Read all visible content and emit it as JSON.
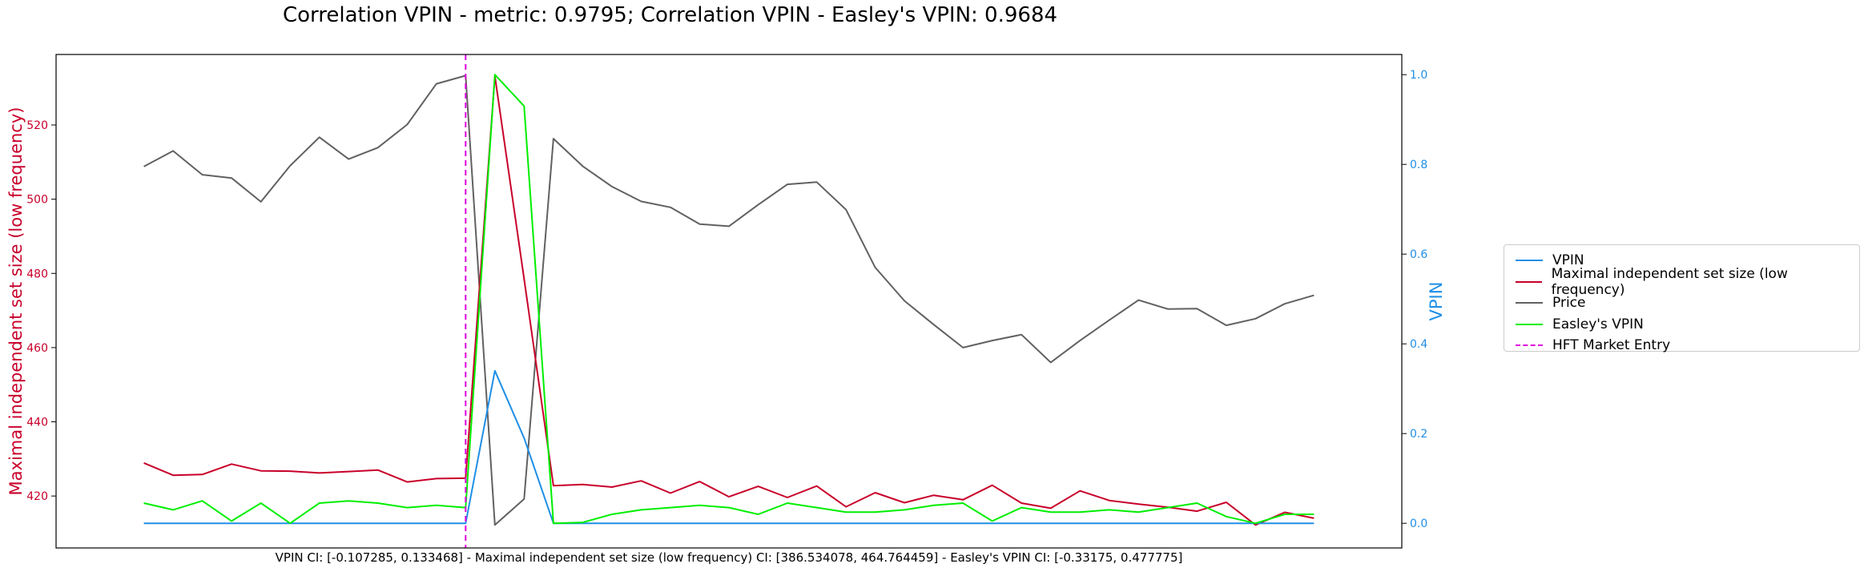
{
  "chart_data": {
    "type": "line",
    "title": "Correlation VPIN - metric: 0.9795; Correlation VPIN - Easley's VPIN: 0.9684",
    "footer": "VPIN CI: [-0.107285, 0.133468] - Maximal independent set size (low frequency) CI: [386.534078, 464.764459] - Easley's VPIN CI: [-0.33175, 0.477775]",
    "xlabel": "",
    "y_left": {
      "label": "Maximal independent set size (low frequency)",
      "range": [
        406,
        539
      ],
      "ticks": [
        420,
        440,
        460,
        480,
        500,
        520
      ],
      "color": "#c8002a"
    },
    "y_right": {
      "label": "VPIN",
      "range": [
        -0.055,
        1.045
      ],
      "ticks": [
        0.0,
        0.2,
        0.4,
        0.6,
        0.8,
        1.0
      ],
      "tick_labels": [
        "0.0",
        "0.2",
        "0.4",
        "0.6",
        "0.8",
        "1.0"
      ],
      "color": "#1f8fe6"
    },
    "x": [
      0,
      1,
      2,
      3,
      4,
      5,
      6,
      7,
      8,
      9,
      10,
      11,
      12,
      13,
      14,
      15,
      16,
      17,
      18,
      19,
      20,
      21,
      22,
      23,
      24,
      25,
      26,
      27,
      28,
      29,
      30,
      31,
      32,
      33,
      34,
      35,
      36,
      37,
      38,
      39,
      40
    ],
    "hft_entry_x": 11,
    "series": [
      {
        "name": "VPIN",
        "axis": "right",
        "color": "#1f8fe6",
        "dash": "",
        "values": [
          0,
          0,
          0,
          0,
          0,
          0,
          0,
          0,
          0,
          0,
          0,
          0,
          0.34,
          0.19,
          0,
          0,
          0,
          0,
          0,
          0,
          0,
          0,
          0,
          0,
          0,
          0,
          0,
          0,
          0,
          0,
          0,
          0,
          0,
          0,
          0,
          0,
          0,
          0,
          0,
          0,
          0
        ]
      },
      {
        "name": "Maximal independent set size (low frequency)",
        "axis": "left",
        "color": "#c8002a",
        "dash": "",
        "values": [
          428.9,
          425.6,
          425.8,
          428.6,
          426.8,
          426.7,
          426.2,
          426.6,
          427,
          423.8,
          424.7,
          424.8,
          533.2,
          478.5,
          422.8,
          423.1,
          422.4,
          424.1,
          420.8,
          423.9,
          419.8,
          422.6,
          419.6,
          422.7,
          417.1,
          420.9,
          418.2,
          420.2,
          419,
          422.9,
          418.1,
          416.7,
          421.4,
          418.8,
          417.8,
          417,
          415.9,
          418.3,
          412.2,
          415.6,
          414
        ]
      },
      {
        "name": "Price",
        "axis": "left",
        "color": "#616161",
        "dash": "",
        "values": [
          508.8,
          513,
          506.6,
          505.7,
          499.3,
          509,
          516.7,
          510.8,
          513.9,
          520.1,
          531.1,
          533.3,
          412.2,
          419.2,
          516.3,
          508.9,
          503.4,
          499.4,
          497.8,
          493.3,
          492.7,
          498.5,
          504,
          504.6,
          497.2,
          481.6,
          472.6,
          466.2,
          460,
          461.9,
          463.5,
          456,
          461.9,
          467.4,
          472.8,
          470.4,
          470.5,
          466,
          467.8,
          471.8,
          474.1
        ]
      },
      {
        "name": "Easley's VPIN",
        "axis": "right",
        "color": "#00ee00",
        "dash": "",
        "values": [
          0.045,
          0.03,
          0.05,
          0.005,
          0.045,
          0,
          0.045,
          0.05,
          0.045,
          0.035,
          0.04,
          0.035,
          1.0,
          0.93,
          0,
          0.002,
          0.02,
          0.03,
          0.035,
          0.04,
          0.035,
          0.02,
          0.045,
          0.035,
          0.025,
          0.025,
          0.03,
          0.04,
          0.045,
          0.005,
          0.035,
          0.025,
          0.025,
          0.03,
          0.025,
          0.035,
          0.045,
          0.015,
          0,
          0.02,
          0.02
        ]
      }
    ],
    "legend": {
      "placement": "outside-right",
      "entries": [
        {
          "label": "VPIN",
          "color": "#1f8fe6",
          "dash": ""
        },
        {
          "label": "Maximal independent set size (low frequency)",
          "color": "#c8002a",
          "dash": ""
        },
        {
          "label": "Price",
          "color": "#616161",
          "dash": ""
        },
        {
          "label": "Easley's VPIN",
          "color": "#00ee00",
          "dash": ""
        },
        {
          "label": "HFT Market Entry",
          "color": "#dd00dd",
          "dash": "7,5"
        }
      ]
    }
  }
}
